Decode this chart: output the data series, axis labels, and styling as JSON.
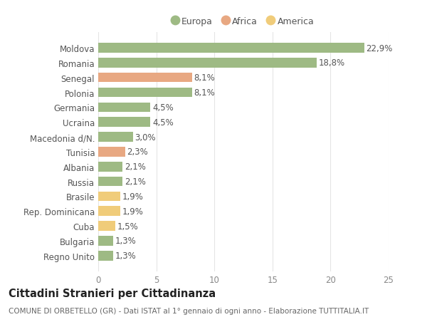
{
  "categories": [
    "Moldova",
    "Romania",
    "Senegal",
    "Polonia",
    "Germania",
    "Ucraina",
    "Macedonia d/N.",
    "Tunisia",
    "Albania",
    "Russia",
    "Brasile",
    "Rep. Dominicana",
    "Cuba",
    "Bulgaria",
    "Regno Unito"
  ],
  "values": [
    22.9,
    18.8,
    8.1,
    8.1,
    4.5,
    4.5,
    3.0,
    2.3,
    2.1,
    2.1,
    1.9,
    1.9,
    1.5,
    1.3,
    1.3
  ],
  "continents": [
    "Europa",
    "Europa",
    "Africa",
    "Europa",
    "Europa",
    "Europa",
    "Europa",
    "Africa",
    "Europa",
    "Europa",
    "America",
    "America",
    "America",
    "Europa",
    "Europa"
  ],
  "labels": [
    "22,9%",
    "18,8%",
    "8,1%",
    "8,1%",
    "4,5%",
    "4,5%",
    "3,0%",
    "2,3%",
    "2,1%",
    "2,1%",
    "1,9%",
    "1,9%",
    "1,5%",
    "1,3%",
    "1,3%"
  ],
  "color_europa": "#9eba84",
  "color_africa": "#e8a882",
  "color_america": "#f0cc7a",
  "legend_labels": [
    "Europa",
    "Africa",
    "America"
  ],
  "title": "Cittadini Stranieri per Cittadinanza",
  "subtitle": "COMUNE DI ORBETELLO (GR) - Dati ISTAT al 1° gennaio di ogni anno - Elaborazione TUTTITALIA.IT",
  "xlim": [
    0,
    25
  ],
  "xticks": [
    0,
    5,
    10,
    15,
    20,
    25
  ],
  "background_color": "#ffffff",
  "grid_color": "#e5e5e5",
  "bar_height": 0.65,
  "label_fontsize": 8.5,
  "tick_fontsize": 8.5,
  "title_fontsize": 10.5,
  "subtitle_fontsize": 7.5
}
